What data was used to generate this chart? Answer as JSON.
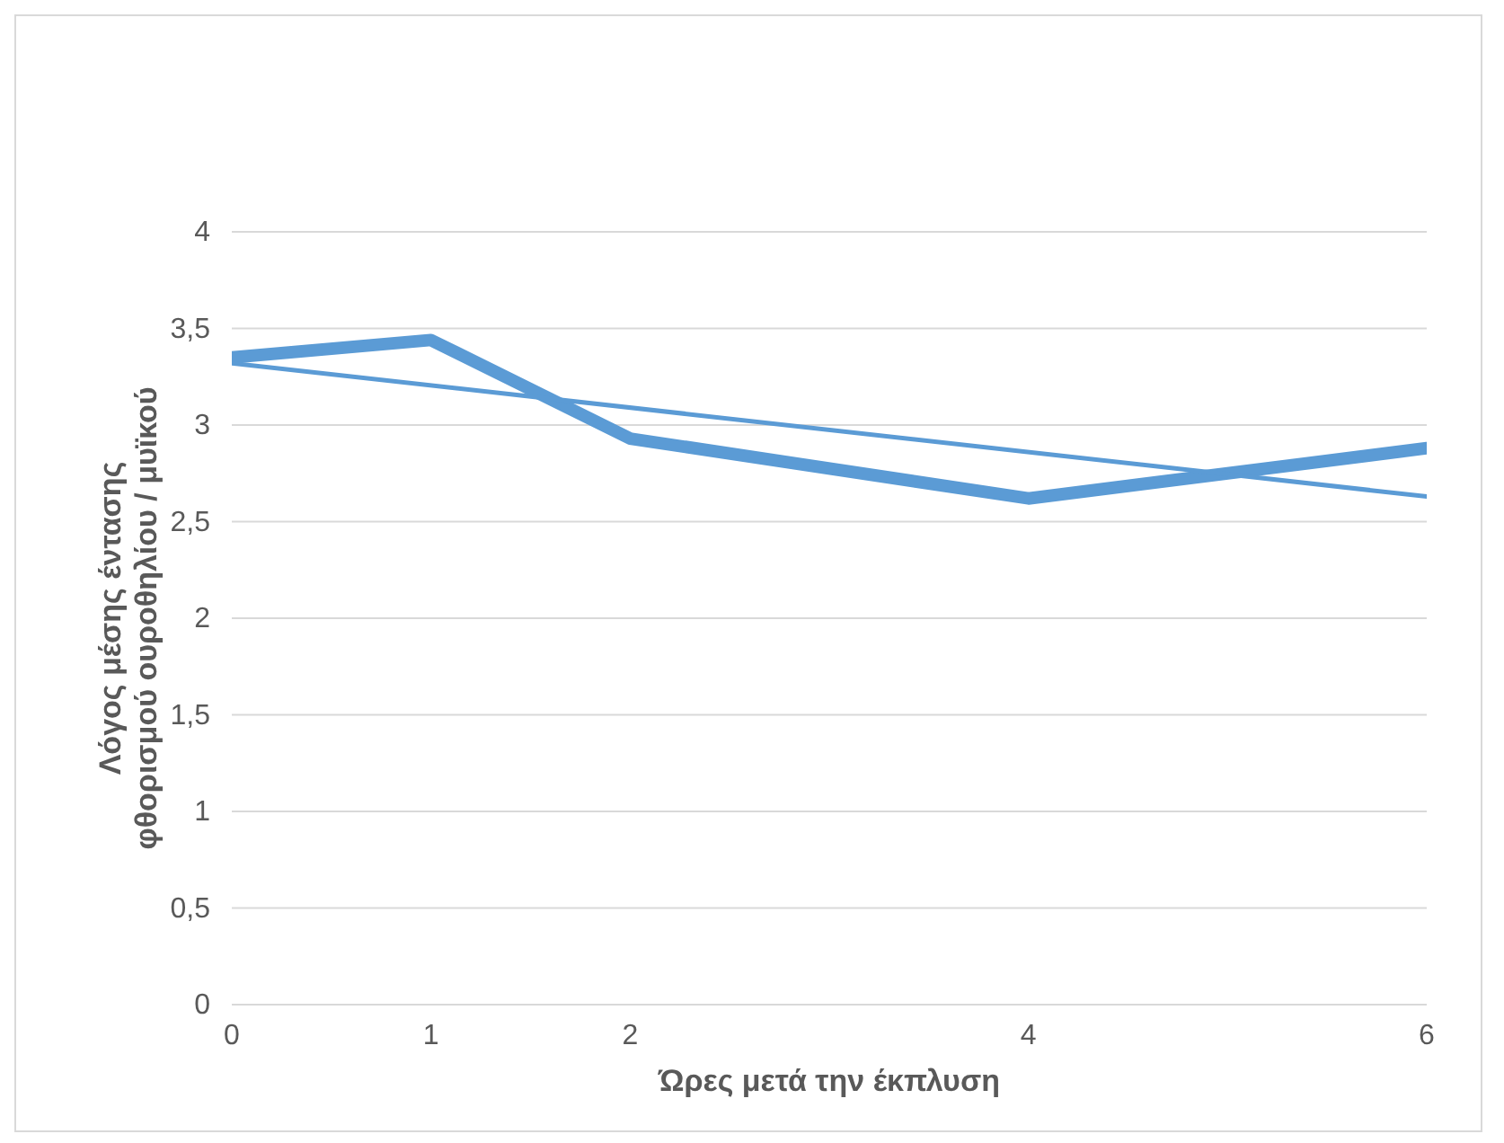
{
  "chart_data": {
    "type": "line",
    "xlabel": "Ώρες μετά την έκπλυση",
    "ylabel": "Λόγος μέσης έντασης φθορισμού ουροθηλίου / μυϊκού",
    "x": [
      0,
      1,
      2,
      4,
      6
    ],
    "series": [
      {
        "color": "#5b9bd5",
        "values": [
          3.35,
          3.44,
          2.93,
          2.62,
          2.88
        ]
      },
      {
        "type": "line",
        "color": "#5b9bd5",
        "x": [
          0,
          6
        ],
        "values": [
          3.32,
          2.63
        ]
      }
    ],
    "xlim": [
      0,
      6
    ],
    "xticks": [
      0,
      1,
      2,
      4,
      6
    ],
    "ylim": [
      0,
      4
    ],
    "yticks": [
      0,
      {
        "value": 0.5,
        "label": "0,5"
      },
      1,
      {
        "value": 1.5,
        "label": "1,5"
      },
      2,
      {
        "value": 2.5,
        "label": "2,5"
      },
      3,
      {
        "value": 3.5,
        "label": "3,5"
      },
      4
    ],
    "grid": "y",
    "marker": "none",
    "line_style": "solid"
  }
}
